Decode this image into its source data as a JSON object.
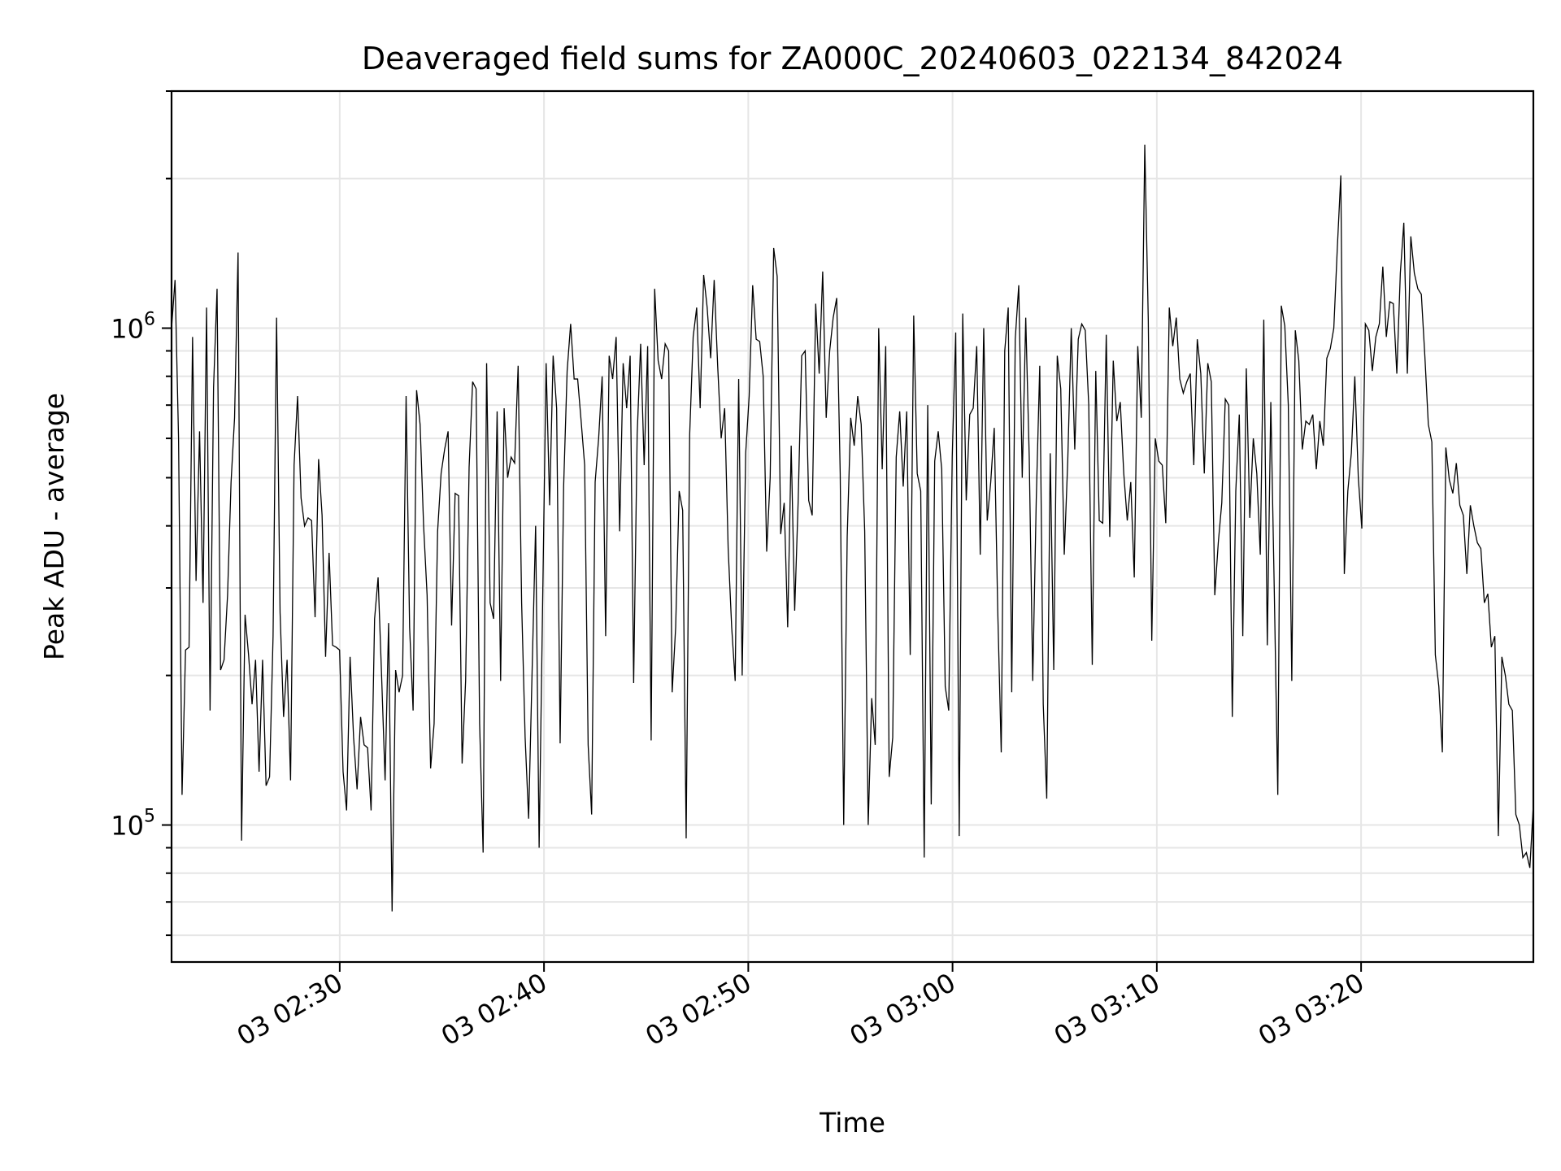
{
  "chart_data": {
    "type": "line",
    "title": "Deaveraged field sums for ZA000C_20240603_022134_842024",
    "xlabel": "Time",
    "ylabel": "Peak ADU - average",
    "y_scale": "log",
    "ylim": [
      53000,
      3000000
    ],
    "xlim": [
      "2024-06-03 02:21:46",
      "2024-06-03 03:28:26"
    ],
    "y_major_ticks": [
      {
        "value": 100000,
        "base": "10",
        "exp": "5"
      },
      {
        "value": 1000000,
        "base": "10",
        "exp": "6"
      }
    ],
    "x_ticks": [
      {
        "time": "2024-06-03 02:30:00",
        "label": "03 02:30"
      },
      {
        "time": "2024-06-03 02:40:00",
        "label": "03 02:40"
      },
      {
        "time": "2024-06-03 02:50:00",
        "label": "03 02:50"
      },
      {
        "time": "2024-06-03 03:00:00",
        "label": "03 03:00"
      },
      {
        "time": "2024-06-03 03:10:00",
        "label": "03 03:10"
      },
      {
        "time": "2024-06-03 03:20:00",
        "label": "03 03:20"
      }
    ],
    "grid": true,
    "line_color": "#000000",
    "series": [
      {
        "start": "2024-06-03 02:21:46",
        "end": "2024-06-03 03:28:26",
        "values": [
          1000000,
          1250000,
          600000,
          115000,
          225000,
          228000,
          960000,
          310000,
          620000,
          280000,
          1100000,
          170000,
          760000,
          1200000,
          205000,
          215000,
          290000,
          490000,
          660000,
          1420000,
          93000,
          265000,
          220000,
          175000,
          215000,
          128000,
          215000,
          120000,
          125000,
          240000,
          1050000,
          268000,
          165000,
          215000,
          123000,
          530000,
          730000,
          455000,
          400000,
          415000,
          410000,
          262000,
          545000,
          420000,
          218000,
          353000,
          230000,
          228000,
          225000,
          128000,
          107000,
          218000,
          150000,
          118000,
          165000,
          145000,
          143000,
          107000,
          260000,
          315000,
          200000,
          123000,
          255000,
          67000,
          205000,
          185000,
          200000,
          730000,
          250000,
          170000,
          750000,
          640000,
          400000,
          290000,
          130000,
          160000,
          390000,
          510000,
          570000,
          620000,
          252000,
          465000,
          460000,
          133000,
          195000,
          525000,
          780000,
          755000,
          160000,
          88000,
          850000,
          280000,
          260000,
          680000,
          195000,
          690000,
          500000,
          550000,
          535000,
          840000,
          280000,
          150000,
          103000,
          205000,
          400000,
          90000,
          280000,
          850000,
          440000,
          880000,
          690000,
          146000,
          480000,
          820000,
          1020000,
          790000,
          790000,
          650000,
          530000,
          145000,
          105000,
          490000,
          600000,
          800000,
          240000,
          880000,
          790000,
          960000,
          390000,
          850000,
          690000,
          880000,
          193000,
          610000,
          930000,
          530000,
          920000,
          148000,
          1200000,
          860000,
          790000,
          930000,
          900000,
          185000,
          250000,
          470000,
          430000,
          94000,
          610000,
          960000,
          1100000,
          690000,
          1280000,
          1100000,
          870000,
          1250000,
          840000,
          600000,
          690000,
          360000,
          250000,
          195000,
          790000,
          200000,
          560000,
          730000,
          1220000,
          950000,
          940000,
          800000,
          355000,
          500000,
          1450000,
          1270000,
          385000,
          445000,
          250000,
          580000,
          270000,
          450000,
          880000,
          900000,
          450000,
          420000,
          1120000,
          810000,
          1300000,
          660000,
          900000,
          1050000,
          1150000,
          510000,
          100000,
          380000,
          660000,
          580000,
          730000,
          640000,
          390000,
          100000,
          180000,
          145000,
          1000000,
          520000,
          920000,
          125000,
          150000,
          550000,
          680000,
          480000,
          680000,
          220000,
          1060000,
          510000,
          470000,
          86000,
          700000,
          110000,
          540000,
          620000,
          520000,
          190000,
          170000,
          550000,
          980000,
          95000,
          1070000,
          450000,
          670000,
          690000,
          920000,
          350000,
          1000000,
          410000,
          490000,
          630000,
          270000,
          140000,
          900000,
          1100000,
          185000,
          950000,
          1220000,
          500000,
          1050000,
          550000,
          195000,
          450000,
          840000,
          175000,
          113000,
          560000,
          205000,
          880000,
          755000,
          350000,
          540000,
          1000000,
          570000,
          950000,
          1020000,
          990000,
          700000,
          210000,
          820000,
          410000,
          405000,
          970000,
          380000,
          860000,
          650000,
          710000,
          510000,
          410000,
          490000,
          315000,
          920000,
          660000,
          2340000,
          1040000,
          235000,
          600000,
          540000,
          530000,
          405000,
          1100000,
          920000,
          1050000,
          790000,
          740000,
          780000,
          810000,
          530000,
          950000,
          810000,
          510000,
          850000,
          780000,
          290000,
          370000,
          445000,
          720000,
          700000,
          165000,
          470000,
          670000,
          240000,
          830000,
          415000,
          600000,
          510000,
          350000,
          1040000,
          230000,
          710000,
          295000,
          115000,
          1110000,
          1010000,
          700000,
          195000,
          990000,
          860000,
          570000,
          650000,
          640000,
          670000,
          520000,
          650000,
          580000,
          870000,
          910000,
          1000000,
          1450000,
          2030000,
          320000,
          470000,
          560000,
          800000,
          500000,
          395000,
          1020000,
          990000,
          820000,
          960000,
          1020000,
          1330000,
          960000,
          1130000,
          1120000,
          810000,
          1290000,
          1630000,
          810000,
          1530000,
          1290000,
          1200000,
          1170000,
          880000,
          640000,
          590000,
          220000,
          190000,
          140000,
          575000,
          495000,
          465000,
          535000,
          440000,
          420000,
          320000,
          440000,
          400000,
          370000,
          360000,
          280000,
          292000,
          228000,
          240000,
          95000,
          218000,
          200000,
          175000,
          170000,
          105000,
          100000,
          86000,
          88000,
          82000,
          110000
        ]
      }
    ]
  }
}
